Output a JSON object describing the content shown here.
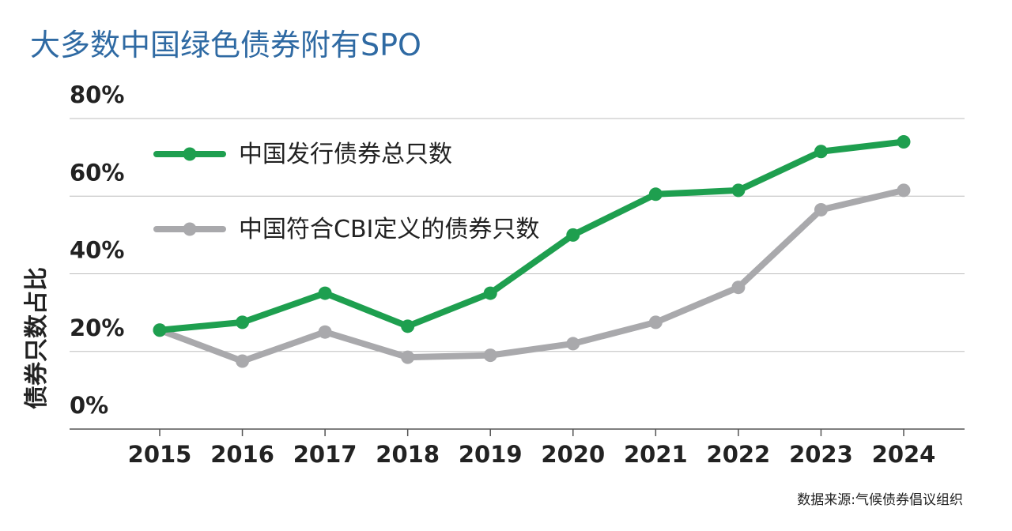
{
  "chart_data": {
    "type": "line",
    "title": "大多数中国绿色债券附有SPO",
    "source": "数据来源:气候债券倡议组织",
    "xlabel": "",
    "ylabel": "债券只数占比",
    "ylim": [
      0,
      80
    ],
    "yticks": [
      "0%",
      "20%",
      "40%",
      "60%",
      "80%"
    ],
    "yticks_values": [
      0,
      20,
      40,
      60,
      80
    ],
    "categories": [
      "2015",
      "2016",
      "2017",
      "2018",
      "2019",
      "2020",
      "2021",
      "2022",
      "2023",
      "2024"
    ],
    "legend_position": "top-left",
    "grid": true,
    "series": [
      {
        "name": "中国发行债券总只数",
        "color": "#1e9f4f",
        "values": [
          25.5,
          27.5,
          35,
          26.5,
          35,
          50,
          60.5,
          61.5,
          71.5,
          74
        ]
      },
      {
        "name": "中国符合CBI定义的债券只数",
        "color": "#a9a9ac",
        "values": [
          25.5,
          17.5,
          25,
          18.5,
          19,
          22,
          27.5,
          36.5,
          56.5,
          61.5
        ]
      }
    ]
  }
}
